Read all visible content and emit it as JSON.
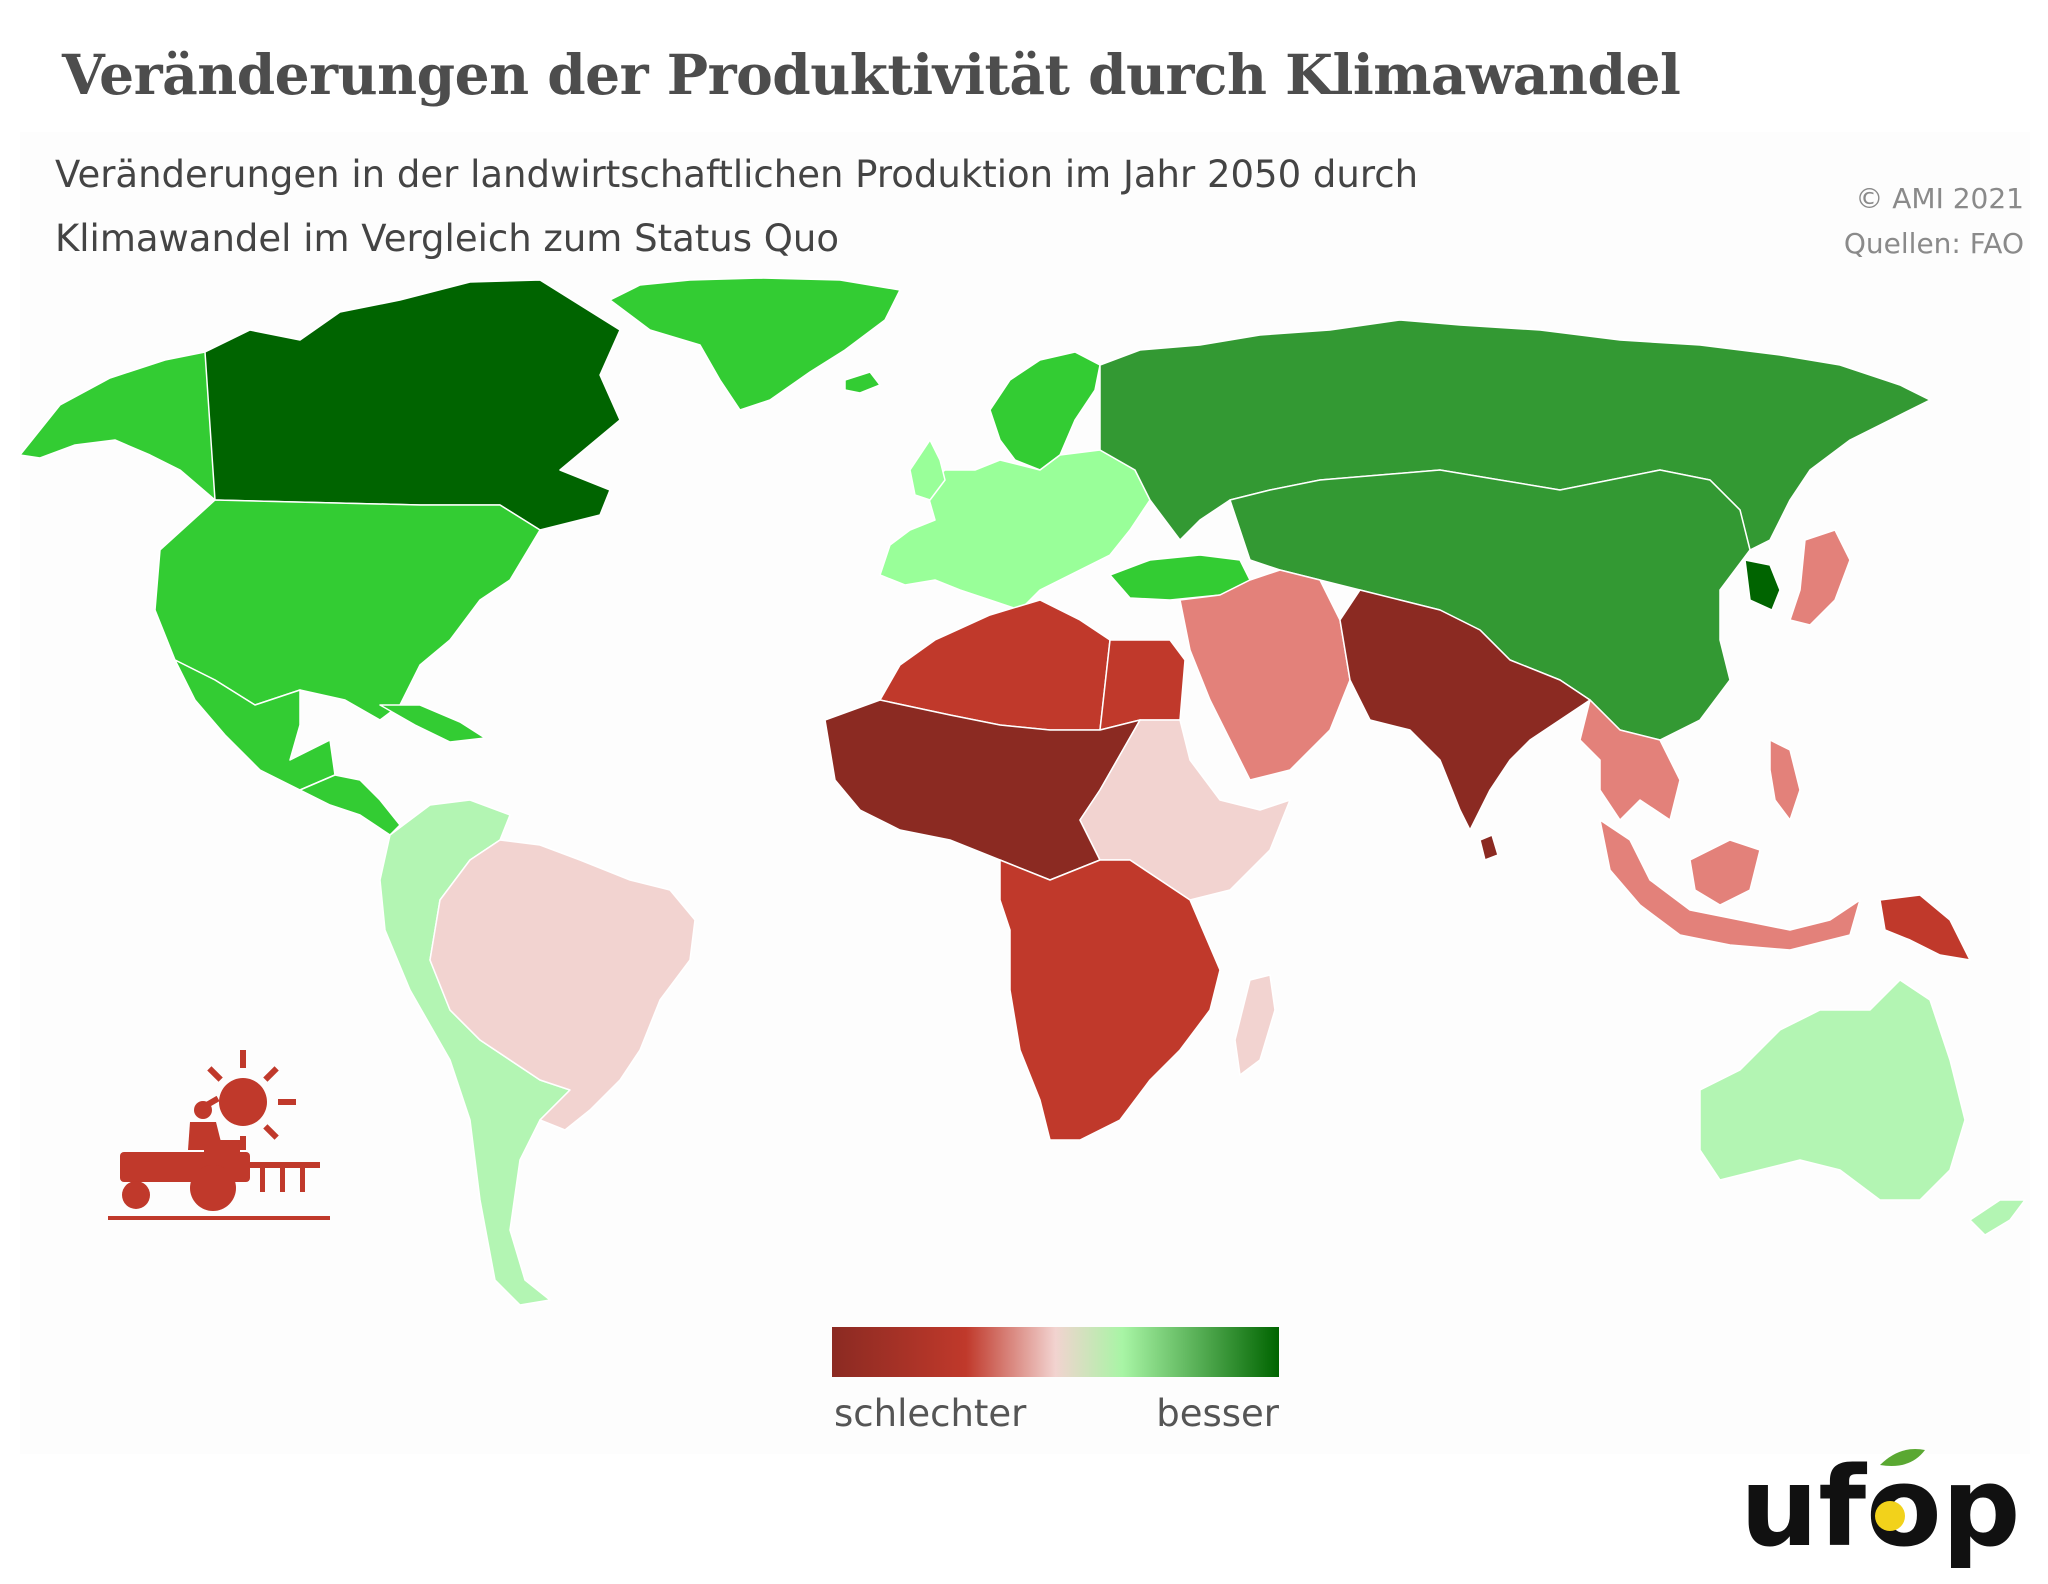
{
  "header": {
    "title": "Veränderungen der Produktivität durch Klimawandel",
    "subtitle_line1": "Veränderungen in der landwirtschaftlichen Produktion im Jahr 2050 durch",
    "subtitle_line2": "Klimawandel im Vergleich zum Status Quo",
    "credit_line1": "© AMI 2021",
    "credit_line2": "Quellen: FAO"
  },
  "legend": {
    "low_label": "schlechter",
    "high_label": "besser",
    "scale_colors": [
      "#8b2a22",
      "#c0392b",
      "#f2d3d0",
      "#a8f5a5",
      "#006400"
    ]
  },
  "palette": {
    "dark_green": "#006400",
    "green": "#339933",
    "light_green": "#33cc33",
    "pale_green": "#99ff99",
    "paler_green": "#b3f5b3",
    "pale_red": "#f2d3d0",
    "salmon": "#e3817a",
    "red": "#c0392b",
    "dark_red": "#8b2a22",
    "icon_color": "#c0392b"
  },
  "regions": [
    {
      "name": "Kanada",
      "class": "dark_green"
    },
    {
      "name": "Alaska",
      "class": "light_green"
    },
    {
      "name": "Grönland",
      "class": "light_green"
    },
    {
      "name": "USA",
      "class": "light_green"
    },
    {
      "name": "Mexiko",
      "class": "light_green"
    },
    {
      "name": "Mittelamerika",
      "class": "light_green"
    },
    {
      "name": "Karibik",
      "class": "light_green"
    },
    {
      "name": "Südamerika (Anden, Süden)",
      "class": "paler_green"
    },
    {
      "name": "Brasilien",
      "class": "pale_red"
    },
    {
      "name": "Europa",
      "class": "pale_green"
    },
    {
      "name": "Skandinavien",
      "class": "light_green"
    },
    {
      "name": "Russland",
      "class": "green"
    },
    {
      "name": "Türkei",
      "class": "green"
    },
    {
      "name": "China und Zentralasien",
      "class": "pale_red"
    },
    {
      "name": "Koreanische Halbinsel",
      "class": "dark_green"
    },
    {
      "name": "Japan",
      "class": "salmon"
    },
    {
      "name": "Naher Osten",
      "class": "salmon"
    },
    {
      "name": "Südasien",
      "class": "dark_red"
    },
    {
      "name": "Nordafrika",
      "class": "red"
    },
    {
      "name": "Ägypten",
      "class": "red"
    },
    {
      "name": "Sahelzone und Westafrika",
      "class": "dark_red"
    },
    {
      "name": "Ostafrika",
      "class": "pale_red"
    },
    {
      "name": "Südliches Afrika",
      "class": "red"
    },
    {
      "name": "Madagaskar",
      "class": "pale_red"
    },
    {
      "name": "Südostasien",
      "class": "salmon"
    },
    {
      "name": "Indonesien",
      "class": "salmon"
    },
    {
      "name": "Papua-Neuguinea",
      "class": "red"
    },
    {
      "name": "Australien",
      "class": "paler_green"
    },
    {
      "name": "Neuseeland",
      "class": "paler_green"
    }
  ],
  "logo": {
    "brand": "ufop",
    "leaf_color": "#5aa832",
    "drop_color": "#f2d21b",
    "text_color": "#111111"
  }
}
